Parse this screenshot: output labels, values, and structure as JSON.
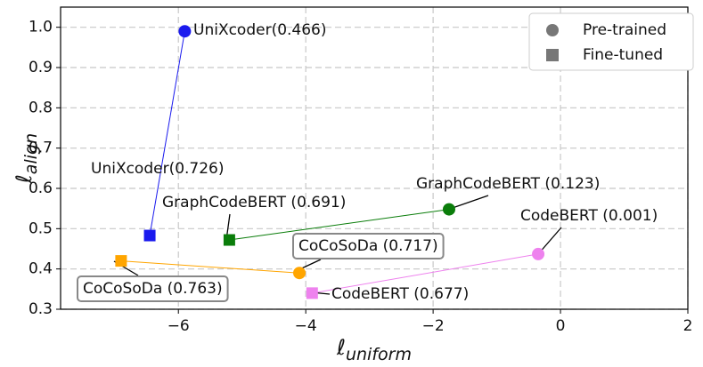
{
  "chart_data": {
    "type": "scatter",
    "xlabel_symbol": "ℓ",
    "xlabel_sub": "uniform",
    "ylabel_symbol": "ℓ",
    "ylabel_sub": "align",
    "xlim": [
      -7.85,
      2.0
    ],
    "ylim": [
      0.3,
      1.05
    ],
    "xticks": [
      {
        "value": -6,
        "label": "−6"
      },
      {
        "value": -4,
        "label": "−4"
      },
      {
        "value": -2,
        "label": "−2"
      },
      0,
      2
    ],
    "yticks": [
      0.3,
      0.4,
      0.5,
      0.6,
      0.7,
      0.8,
      0.9,
      {
        "value": 1.0,
        "label": "1.0"
      }
    ],
    "grid": true,
    "legend": {
      "position": "upper right",
      "color": "#777777",
      "entries": [
        {
          "name": "Pre-trained",
          "marker": "circle"
        },
        {
          "name": "Fine-tuned",
          "marker": "square"
        }
      ]
    },
    "series": [
      {
        "color": "#1a1aee",
        "pre": {
          "x": -5.9,
          "y": 0.99,
          "label": "UniXcoder(0.466)"
        },
        "fine": {
          "x": -6.45,
          "y": 0.483,
          "label": "UniXcoder(0.726)"
        }
      },
      {
        "color": "#0a7d0a",
        "pre": {
          "x": -1.75,
          "y": 0.548,
          "label": "GraphCodeBERT (0.123)"
        },
        "fine": {
          "x": -5.2,
          "y": 0.472,
          "label": "GraphCodeBERT (0.691)"
        }
      },
      {
        "color": "#ee82ee",
        "pre": {
          "x": -0.35,
          "y": 0.437,
          "label": "CodeBERT (0.001)"
        },
        "fine": {
          "x": -3.9,
          "y": 0.34,
          "label": "CodeBERT (0.677)"
        }
      },
      {
        "color": "#ffa500",
        "pre": {
          "x": -4.1,
          "y": 0.39,
          "label": "CoCoSoDa (0.717)"
        },
        "fine": {
          "x": -6.9,
          "y": 0.42,
          "label": "CoCoSoDa (0.763)"
        }
      }
    ]
  }
}
